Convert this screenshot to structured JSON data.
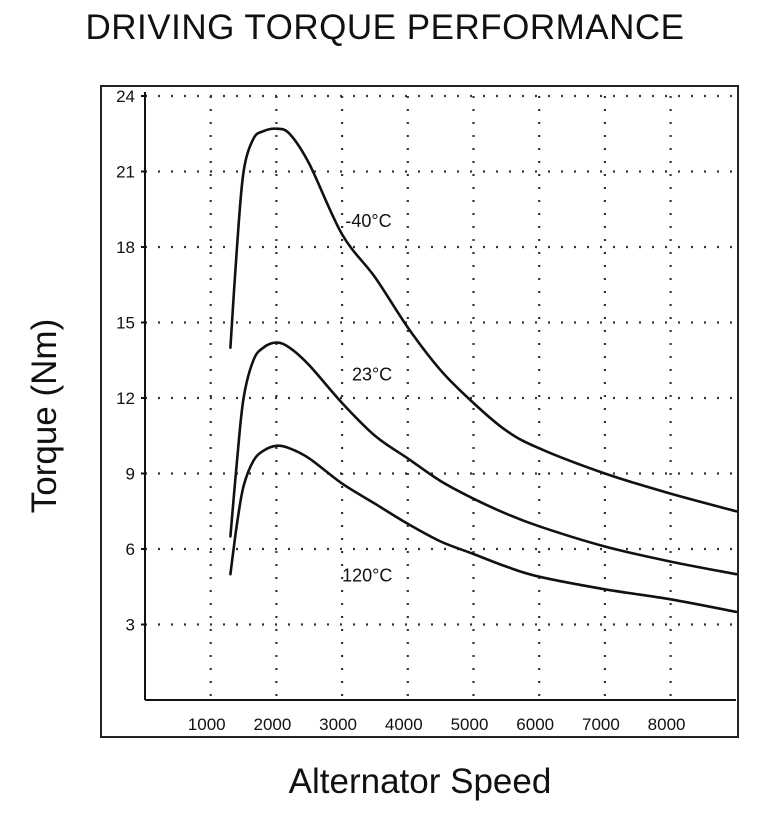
{
  "chart_data": {
    "type": "line",
    "title": "DRIVING TORQUE PERFORMANCE",
    "xlabel": "Alternator Speed",
    "ylabel": "Torque (Nm)",
    "xlim": [
      0,
      9000
    ],
    "ylim": [
      0,
      24
    ],
    "x_ticks": [
      1000,
      2000,
      3000,
      4000,
      5000,
      6000,
      7000,
      8000
    ],
    "y_ticks": [
      3,
      6,
      9,
      12,
      15,
      18,
      21,
      24
    ],
    "grid": "dotted",
    "legend": "none",
    "series": [
      {
        "name": "-40°C",
        "x": [
          1300,
          1400,
          1500,
          1650,
          1800,
          2000,
          2200,
          2500,
          3000,
          3500,
          4000,
          4500,
          5000,
          5500,
          6000,
          7000,
          8000,
          9000
        ],
        "values": [
          14.0,
          18.0,
          21.0,
          22.3,
          22.6,
          22.7,
          22.5,
          21.3,
          18.5,
          16.8,
          14.8,
          13.1,
          11.8,
          10.7,
          10.0,
          9.0,
          8.2,
          7.5
        ]
      },
      {
        "name": "23°C",
        "x": [
          1300,
          1400,
          1500,
          1650,
          1800,
          2000,
          2200,
          2500,
          3000,
          3500,
          4000,
          4500,
          5000,
          5500,
          6000,
          7000,
          8000,
          9000
        ],
        "values": [
          6.5,
          9.5,
          12.0,
          13.5,
          14.0,
          14.2,
          14.0,
          13.3,
          11.8,
          10.5,
          9.6,
          8.7,
          8.0,
          7.4,
          6.9,
          6.1,
          5.5,
          5.0
        ]
      },
      {
        "name": "120°C",
        "x": [
          1300,
          1400,
          1500,
          1650,
          1800,
          2000,
          2200,
          2500,
          3000,
          3500,
          4000,
          4500,
          5000,
          5500,
          6000,
          7000,
          8000,
          9000
        ],
        "values": [
          5.0,
          7.0,
          8.5,
          9.5,
          9.9,
          10.1,
          10.0,
          9.6,
          8.6,
          7.8,
          7.0,
          6.3,
          5.8,
          5.3,
          4.9,
          4.4,
          4.0,
          3.5
        ]
      }
    ]
  }
}
